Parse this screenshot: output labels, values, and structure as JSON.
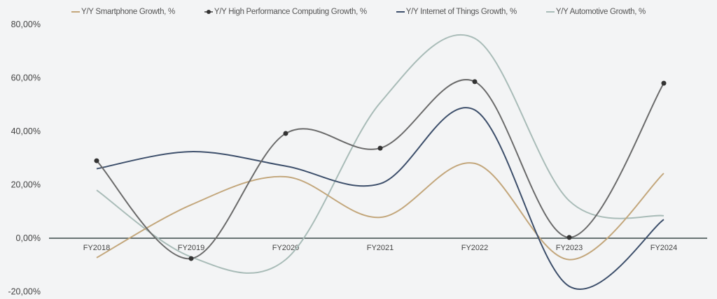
{
  "chart_data": {
    "type": "line",
    "title": "",
    "xlabel": "",
    "ylabel": "",
    "categories": [
      "FY2018",
      "FY2019",
      "FY2020",
      "FY2021",
      "FY2022",
      "FY2023",
      "FY2024"
    ],
    "ylim": [
      -20,
      80
    ],
    "yticks": [
      80,
      60,
      40,
      20,
      0,
      -20
    ],
    "ytick_labels": [
      "80,00%",
      "60,00%",
      "40,00%",
      "20,00%",
      "0,00%",
      "-20,00%"
    ],
    "grid": false,
    "smooth": true,
    "legend_position": "top",
    "series": [
      {
        "name": "Y/Y Smartphone Growth, %",
        "color": "#c3a77c",
        "markers": false,
        "values": [
          -7.3,
          12.5,
          23.0,
          7.8,
          28.0,
          -8.0,
          24.3
        ]
      },
      {
        "name": "Y/Y High Performance Computing Growth, %",
        "color": "#6b6b6b",
        "markers": true,
        "values": [
          29.0,
          -7.6,
          39.2,
          33.7,
          58.6,
          0.3,
          58.0
        ]
      },
      {
        "name": "Y/Y Internet of Things Growth, %",
        "color": "#3d4f6b",
        "markers": false,
        "values": [
          26.0,
          32.4,
          27.0,
          20.4,
          48.0,
          -18.0,
          7.0
        ]
      },
      {
        "name": "Y/Y Automotive Growth, %",
        "color": "#a9bcb8",
        "markers": false,
        "values": [
          18.0,
          -7.0,
          -8.0,
          50.7,
          74.8,
          14.0,
          8.4
        ]
      }
    ]
  }
}
